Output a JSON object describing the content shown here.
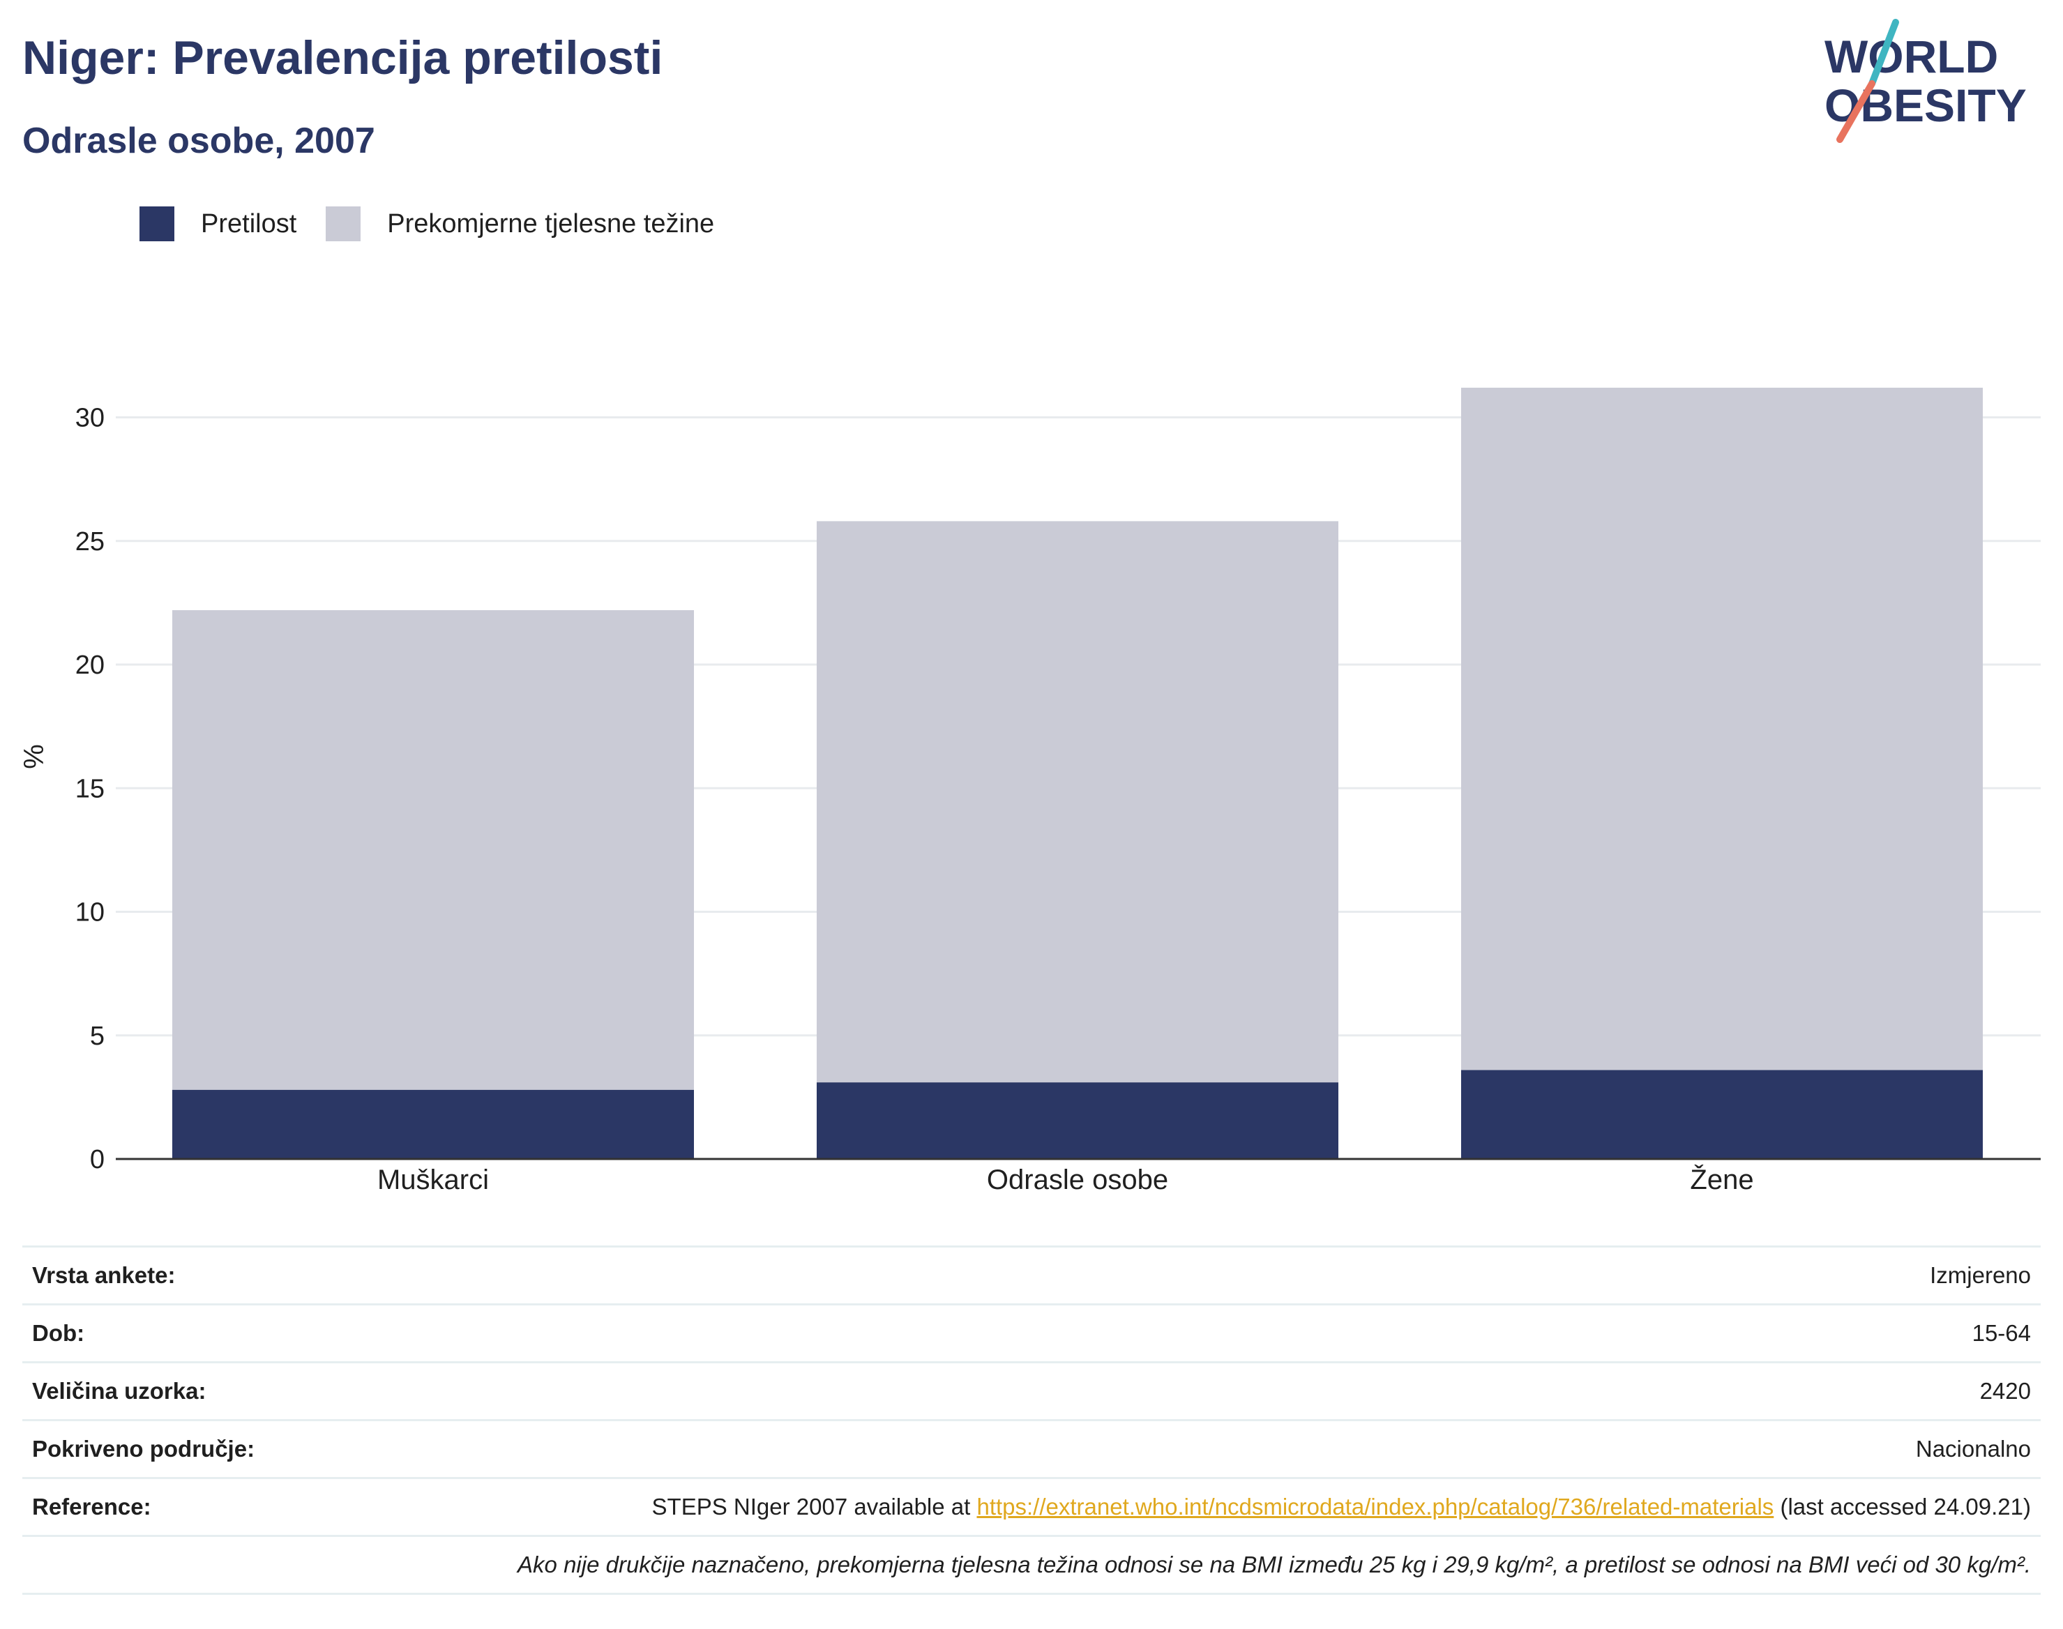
{
  "header": {
    "title": "Niger: Prevalencija pretilosti",
    "subtitle": "Odrasle osobe, 2007"
  },
  "logo": {
    "line1": "WORLD",
    "line2": "OBESITY"
  },
  "colors": {
    "obesity": "#2b3765",
    "overweight": "#cacbd6",
    "grid": "#e8ebee",
    "axis": "#333333",
    "link": "#e0a81e",
    "logo_slash_teal": "#3fb5c1",
    "logo_slash_coral": "#e8735e"
  },
  "chart_data": {
    "type": "bar",
    "stacked": true,
    "categories": [
      "Muškarci",
      "Odrasle osobe",
      "Žene"
    ],
    "series": [
      {
        "name": "Pretilost",
        "values": [
          2.8,
          3.1,
          3.6
        ]
      },
      {
        "name": "Prekomjerne tjelesne težine",
        "values": [
          19.4,
          22.7,
          27.6
        ]
      }
    ],
    "ylabel": "%",
    "ylim": [
      0,
      32
    ],
    "yticks": [
      0,
      5,
      10,
      15,
      20,
      25,
      30
    ],
    "grid": true,
    "legend_position": "top-left"
  },
  "info": {
    "rows": [
      {
        "label": "Vrsta ankete:",
        "value": "Izmjereno"
      },
      {
        "label": "Dob:",
        "value": "15-64"
      },
      {
        "label": "Veličina uzorka:",
        "value": "2420"
      },
      {
        "label": "Pokriveno područje:",
        "value": "Nacionalno"
      }
    ],
    "reference": {
      "label": "Reference:",
      "prefix": "STEPS NIger 2007 available at ",
      "link": "https://extranet.who.int/ncdsmicrodata/index.php/catalog/736/related-materials",
      "suffix": " (last accessed 24.09.21)"
    },
    "note": "Ako nije drukčije naznačeno, prekomjerna tjelesna težina odnosi se na BMI između 25 kg i 29,9 kg/m², a pretilost se odnosi na BMI veći od 30 kg/m²."
  }
}
